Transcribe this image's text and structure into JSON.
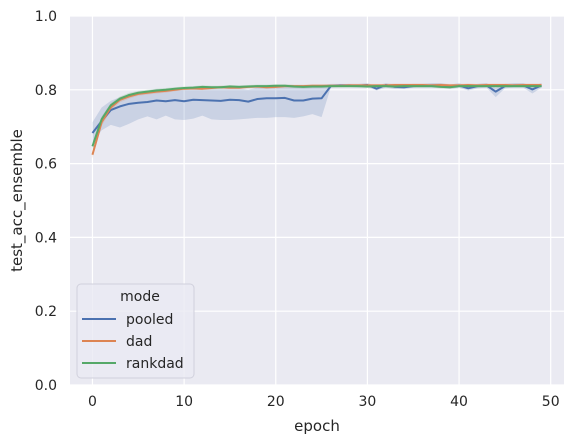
{
  "chart_data": {
    "type": "line",
    "xlabel": "epoch",
    "ylabel": "test_acc_ensemble",
    "xlim": [
      -2.45,
      51.45
    ],
    "ylim": [
      0.0,
      1.0
    ],
    "xticks": [
      0,
      10,
      20,
      30,
      40,
      50
    ],
    "yticks": [
      0.0,
      0.2,
      0.4,
      0.6,
      0.8,
      1.0
    ],
    "xtick_labels": [
      "0",
      "10",
      "20",
      "30",
      "40",
      "50"
    ],
    "ytick_labels": [
      "0.0",
      "0.2",
      "0.4",
      "0.6",
      "0.8",
      "1.0"
    ],
    "grid": true,
    "background": "#eaeaf2",
    "legend": {
      "title": "mode",
      "placement": "lower-left"
    },
    "x": [
      0,
      1,
      2,
      3,
      4,
      5,
      6,
      7,
      8,
      9,
      10,
      11,
      12,
      13,
      14,
      15,
      16,
      17,
      18,
      19,
      20,
      21,
      22,
      23,
      24,
      25,
      26,
      27,
      28,
      29,
      30,
      31,
      32,
      33,
      34,
      35,
      36,
      37,
      38,
      39,
      40,
      41,
      42,
      43,
      44,
      45,
      46,
      47,
      48,
      49
    ],
    "series": [
      {
        "name": "pooled",
        "color": "#4c72b0",
        "values": [
          0.683,
          0.715,
          0.745,
          0.755,
          0.762,
          0.765,
          0.767,
          0.771,
          0.769,
          0.772,
          0.769,
          0.773,
          0.772,
          0.771,
          0.77,
          0.773,
          0.772,
          0.768,
          0.775,
          0.777,
          0.777,
          0.778,
          0.771,
          0.771,
          0.776,
          0.777,
          0.81,
          0.812,
          0.812,
          0.811,
          0.813,
          0.803,
          0.813,
          0.808,
          0.807,
          0.81,
          0.811,
          0.812,
          0.812,
          0.809,
          0.812,
          0.804,
          0.81,
          0.812,
          0.795,
          0.81,
          0.812,
          0.812,
          0.801,
          0.812
        ],
        "ci_low": [
          0.655,
          0.69,
          0.705,
          0.698,
          0.708,
          0.72,
          0.728,
          0.72,
          0.73,
          0.72,
          0.718,
          0.722,
          0.73,
          0.72,
          0.718,
          0.718,
          0.72,
          0.722,
          0.724,
          0.724,
          0.726,
          0.726,
          0.724,
          0.728,
          0.734,
          0.726,
          0.806,
          0.808,
          0.808,
          0.806,
          0.808,
          0.798,
          0.806,
          0.802,
          0.802,
          0.806,
          0.806,
          0.806,
          0.806,
          0.803,
          0.806,
          0.798,
          0.804,
          0.806,
          0.78,
          0.804,
          0.806,
          0.806,
          0.79,
          0.806
        ],
        "ci_high": [
          0.712,
          0.752,
          0.77,
          0.78,
          0.788,
          0.794,
          0.798,
          0.802,
          0.8,
          0.802,
          0.8,
          0.804,
          0.806,
          0.802,
          0.802,
          0.804,
          0.804,
          0.8,
          0.806,
          0.808,
          0.81,
          0.812,
          0.808,
          0.808,
          0.81,
          0.812,
          0.816,
          0.816,
          0.816,
          0.816,
          0.818,
          0.81,
          0.818,
          0.814,
          0.814,
          0.816,
          0.816,
          0.818,
          0.818,
          0.814,
          0.818,
          0.81,
          0.816,
          0.818,
          0.806,
          0.816,
          0.818,
          0.818,
          0.81,
          0.818
        ]
      },
      {
        "name": "dad",
        "color": "#dd8452",
        "values": [
          0.624,
          0.712,
          0.752,
          0.773,
          0.782,
          0.789,
          0.792,
          0.795,
          0.797,
          0.8,
          0.803,
          0.804,
          0.803,
          0.805,
          0.807,
          0.806,
          0.806,
          0.808,
          0.809,
          0.807,
          0.808,
          0.81,
          0.81,
          0.81,
          0.811,
          0.811,
          0.811,
          0.811,
          0.812,
          0.812,
          0.812,
          0.812,
          0.812,
          0.813,
          0.813,
          0.813,
          0.813,
          0.812,
          0.813,
          0.812,
          0.812,
          0.813,
          0.812,
          0.813,
          0.813,
          0.813,
          0.812,
          0.813,
          0.813,
          0.813
        ],
        "ci_low": [
          0.614,
          0.702,
          0.744,
          0.766,
          0.776,
          0.784,
          0.787,
          0.79,
          0.792,
          0.796,
          0.799,
          0.8,
          0.799,
          0.801,
          0.803,
          0.802,
          0.802,
          0.804,
          0.805,
          0.803,
          0.804,
          0.806,
          0.806,
          0.806,
          0.807,
          0.807,
          0.807,
          0.807,
          0.808,
          0.808,
          0.808,
          0.808,
          0.808,
          0.809,
          0.809,
          0.809,
          0.809,
          0.808,
          0.809,
          0.808,
          0.808,
          0.809,
          0.808,
          0.809,
          0.809,
          0.809,
          0.808,
          0.809,
          0.809,
          0.809
        ],
        "ci_high": [
          0.634,
          0.722,
          0.76,
          0.78,
          0.788,
          0.794,
          0.797,
          0.8,
          0.802,
          0.804,
          0.807,
          0.808,
          0.807,
          0.809,
          0.811,
          0.81,
          0.81,
          0.812,
          0.813,
          0.811,
          0.812,
          0.814,
          0.814,
          0.814,
          0.815,
          0.815,
          0.815,
          0.815,
          0.816,
          0.816,
          0.816,
          0.816,
          0.816,
          0.817,
          0.817,
          0.817,
          0.817,
          0.816,
          0.817,
          0.816,
          0.816,
          0.817,
          0.816,
          0.817,
          0.817,
          0.817,
          0.816,
          0.817,
          0.817,
          0.817
        ]
      },
      {
        "name": "rankdad",
        "color": "#55a868",
        "values": [
          0.647,
          0.72,
          0.758,
          0.776,
          0.786,
          0.792,
          0.795,
          0.798,
          0.8,
          0.803,
          0.805,
          0.806,
          0.808,
          0.807,
          0.807,
          0.809,
          0.808,
          0.809,
          0.81,
          0.81,
          0.811,
          0.811,
          0.809,
          0.808,
          0.809,
          0.809,
          0.81,
          0.81,
          0.81,
          0.81,
          0.809,
          0.81,
          0.81,
          0.809,
          0.81,
          0.81,
          0.81,
          0.81,
          0.808,
          0.807,
          0.81,
          0.81,
          0.81,
          0.81,
          0.81,
          0.81,
          0.81,
          0.81,
          0.81,
          0.81
        ],
        "ci_low": [
          0.637,
          0.712,
          0.752,
          0.77,
          0.78,
          0.787,
          0.79,
          0.793,
          0.795,
          0.799,
          0.801,
          0.802,
          0.804,
          0.803,
          0.803,
          0.805,
          0.804,
          0.805,
          0.806,
          0.806,
          0.807,
          0.807,
          0.805,
          0.804,
          0.805,
          0.805,
          0.806,
          0.806,
          0.806,
          0.806,
          0.805,
          0.806,
          0.806,
          0.805,
          0.806,
          0.806,
          0.806,
          0.806,
          0.804,
          0.803,
          0.806,
          0.806,
          0.806,
          0.806,
          0.806,
          0.806,
          0.806,
          0.806,
          0.806,
          0.806
        ],
        "ci_high": [
          0.657,
          0.728,
          0.764,
          0.782,
          0.792,
          0.797,
          0.8,
          0.803,
          0.805,
          0.807,
          0.809,
          0.81,
          0.812,
          0.811,
          0.811,
          0.813,
          0.812,
          0.813,
          0.814,
          0.814,
          0.815,
          0.815,
          0.813,
          0.812,
          0.813,
          0.813,
          0.814,
          0.814,
          0.814,
          0.814,
          0.813,
          0.814,
          0.814,
          0.813,
          0.814,
          0.814,
          0.814,
          0.814,
          0.812,
          0.811,
          0.814,
          0.814,
          0.814,
          0.814,
          0.814,
          0.814,
          0.814,
          0.814,
          0.814,
          0.814
        ]
      }
    ]
  }
}
